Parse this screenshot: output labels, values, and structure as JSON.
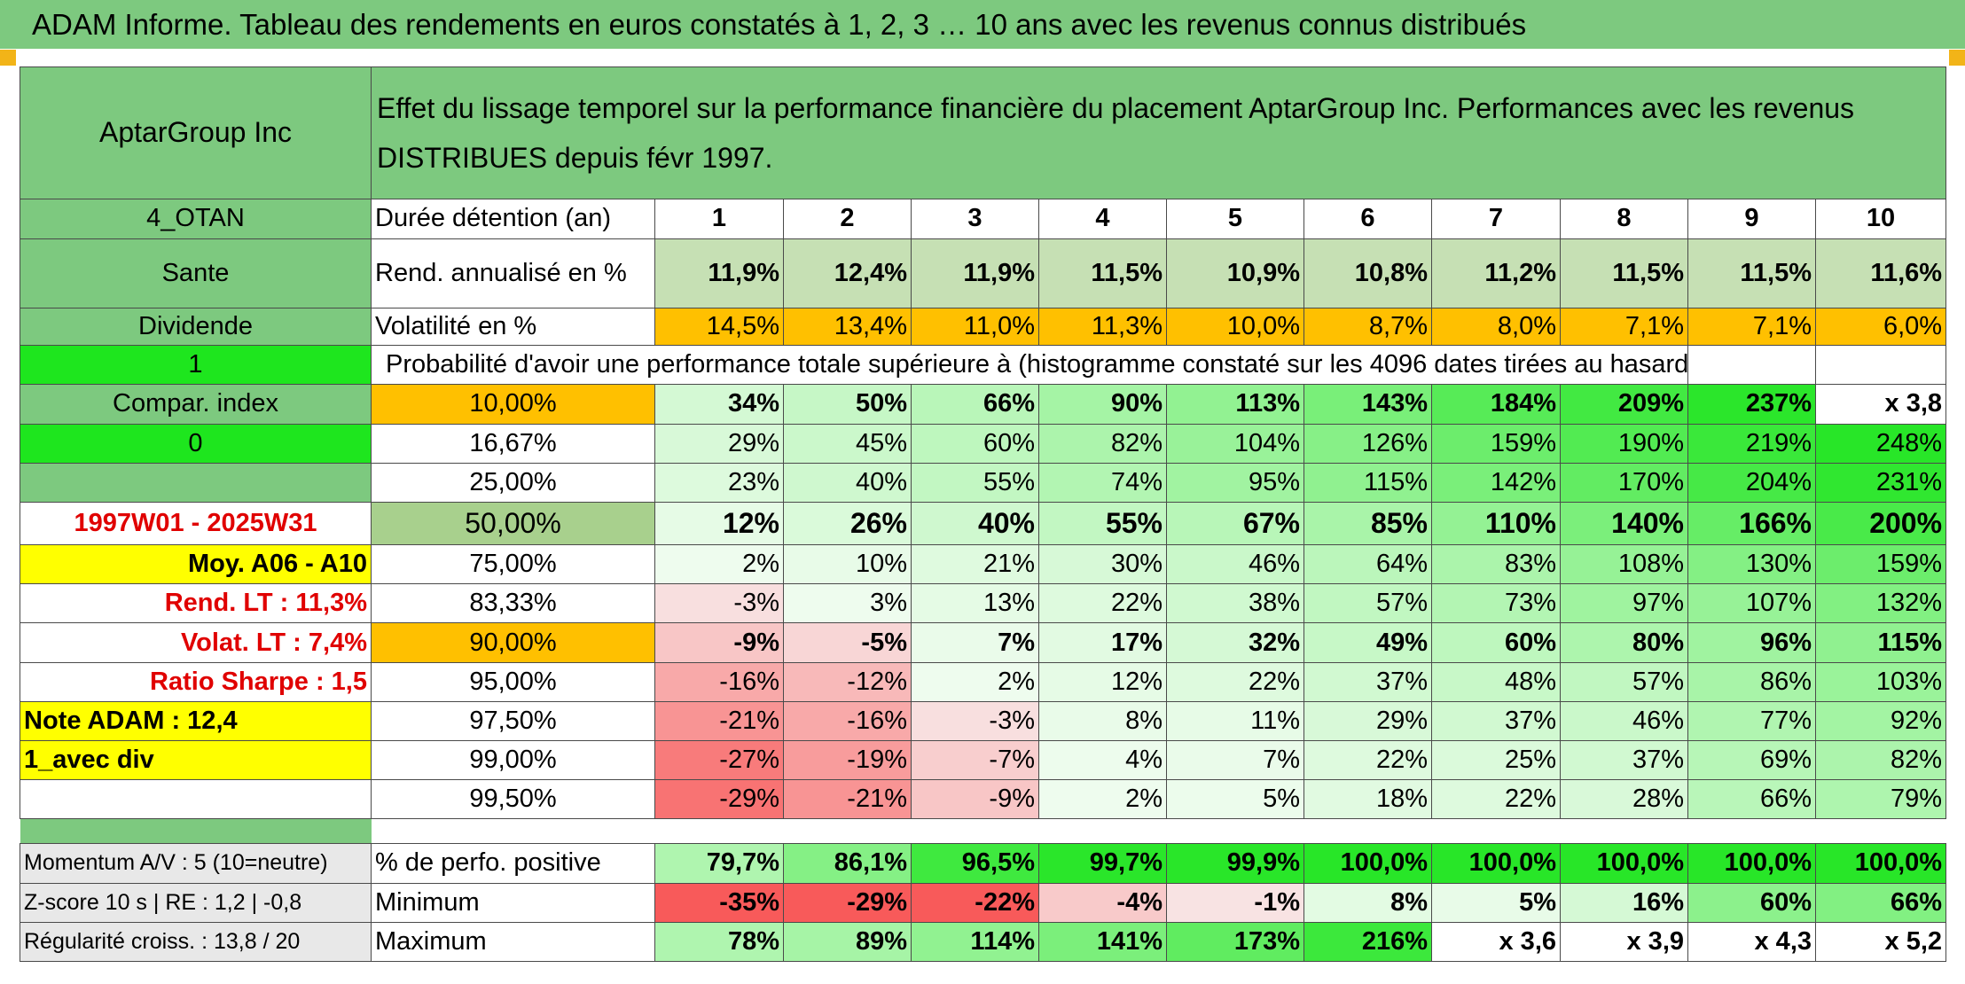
{
  "title": "ADAM Informe. Tableau des rendements en euros constatés à 1, 2, 3 … 10 ans avec les revenus connus distribués",
  "header": {
    "company": "AptarGroup Inc",
    "description": "Effet du lissage temporel sur la performance financière du placement AptarGroup Inc. Performances avec les revenus DISTRIBUES depuis févr 1997."
  },
  "side_labels": {
    "otan": "4_OTAN",
    "sector": "Sante",
    "dividend": "Dividende",
    "one": "1",
    "compar": "Compar. index",
    "zero": "0",
    "period": "1997W01 - 2025W31",
    "moy": "Moy. A06 - A10",
    "rend_lt": "Rend. LT :   11,3%",
    "volat_lt": "Volat. LT :   7,4%",
    "sharpe": "Ratio Sharpe :    1,5",
    "note": "Note ADAM : 12,4",
    "avec_div": "1_avec div",
    "momentum": "Momentum A/V : 5 (10=neutre)",
    "zscore": "Z-score 10 s | RE : 1,2 | -0,8",
    "regularite": "Régularité croiss. : 13,8 / 20"
  },
  "row_labels": {
    "duree": "Durée détention (an)",
    "rend": "Rend. annualisé en %",
    "volat": "Volatilité en %",
    "proba": "Probabilité d'avoir une performance totale supérieure à (histogramme constaté sur les 4096 dates tirées au hasard)",
    "positive": "% de perfo. positive",
    "minimum": "Minimum",
    "maximum": "Maximum"
  },
  "years": [
    "1",
    "2",
    "3",
    "4",
    "5",
    "6",
    "7",
    "8",
    "9",
    "10"
  ],
  "rend": [
    "11,9%",
    "12,4%",
    "11,9%",
    "11,5%",
    "10,9%",
    "10,8%",
    "11,2%",
    "11,5%",
    "11,5%",
    "11,6%"
  ],
  "volat": [
    "14,5%",
    "13,4%",
    "11,0%",
    "11,3%",
    "10,0%",
    "8,7%",
    "8,0%",
    "7,1%",
    "7,1%",
    "6,0%"
  ],
  "proba_rows": [
    {
      "p": "10,00%",
      "v": [
        "34%",
        "50%",
        "66%",
        "90%",
        "113%",
        "143%",
        "184%",
        "209%",
        "237%",
        "x 3,8"
      ]
    },
    {
      "p": "16,67%",
      "v": [
        "29%",
        "45%",
        "60%",
        "82%",
        "104%",
        "126%",
        "159%",
        "190%",
        "219%",
        "248%"
      ]
    },
    {
      "p": "25,00%",
      "v": [
        "23%",
        "40%",
        "55%",
        "74%",
        "95%",
        "115%",
        "142%",
        "170%",
        "204%",
        "231%"
      ]
    },
    {
      "p": "50,00%",
      "v": [
        "12%",
        "26%",
        "40%",
        "55%",
        "67%",
        "85%",
        "110%",
        "140%",
        "166%",
        "200%"
      ]
    },
    {
      "p": "75,00%",
      "v": [
        "2%",
        "10%",
        "21%",
        "30%",
        "46%",
        "64%",
        "83%",
        "108%",
        "130%",
        "159%"
      ]
    },
    {
      "p": "83,33%",
      "v": [
        "-3%",
        "3%",
        "13%",
        "22%",
        "38%",
        "57%",
        "73%",
        "97%",
        "107%",
        "132%"
      ]
    },
    {
      "p": "90,00%",
      "v": [
        "-9%",
        "-5%",
        "7%",
        "17%",
        "32%",
        "49%",
        "60%",
        "80%",
        "96%",
        "115%"
      ]
    },
    {
      "p": "95,00%",
      "v": [
        "-16%",
        "-12%",
        "2%",
        "12%",
        "22%",
        "37%",
        "48%",
        "57%",
        "86%",
        "103%"
      ]
    },
    {
      "p": "97,50%",
      "v": [
        "-21%",
        "-16%",
        "-3%",
        "8%",
        "11%",
        "29%",
        "37%",
        "46%",
        "77%",
        "92%"
      ]
    },
    {
      "p": "99,00%",
      "v": [
        "-27%",
        "-19%",
        "-7%",
        "4%",
        "7%",
        "22%",
        "25%",
        "37%",
        "69%",
        "82%"
      ]
    },
    {
      "p": "99,50%",
      "v": [
        "-29%",
        "-21%",
        "-9%",
        "2%",
        "5%",
        "18%",
        "22%",
        "28%",
        "66%",
        "79%"
      ]
    }
  ],
  "positive": [
    "79,7%",
    "86,1%",
    "96,5%",
    "99,7%",
    "99,9%",
    "100,0%",
    "100,0%",
    "100,0%",
    "100,0%",
    "100,0%"
  ],
  "minimum": [
    "-35%",
    "-29%",
    "-22%",
    "-4%",
    "-1%",
    "8%",
    "5%",
    "16%",
    "60%",
    "66%"
  ],
  "maximum": [
    "78%",
    "89%",
    "114%",
    "141%",
    "173%",
    "216%",
    "x 3,6",
    "x 3,9",
    "x 4,3",
    "x 5,2"
  ],
  "colors": {
    "header_green": "#7dc97f",
    "bright_green": "#1ee61e",
    "yellow": "#ffff00",
    "orange": "#ffc000",
    "return_green": "#c6e0b4",
    "label_red": "#e00000"
  }
}
